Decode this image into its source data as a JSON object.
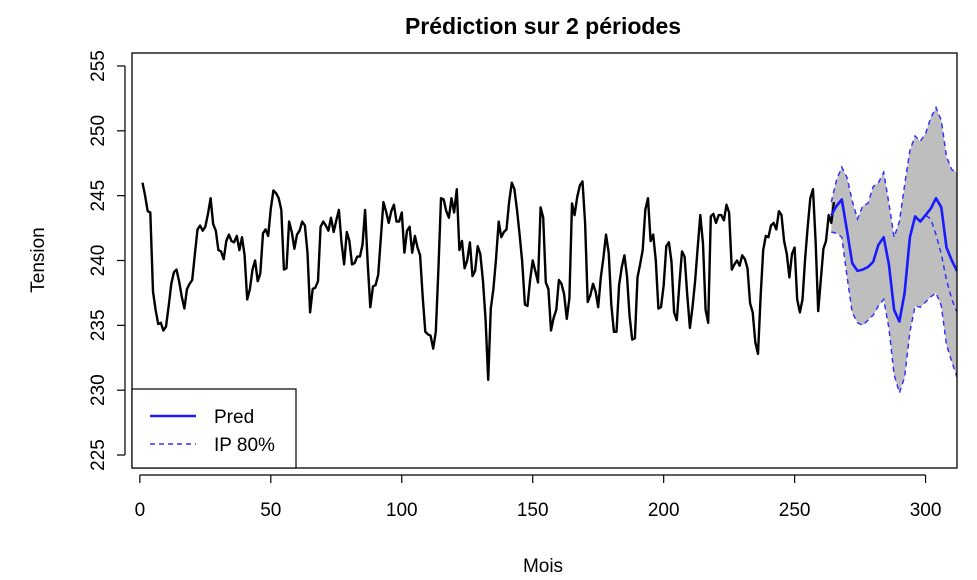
{
  "chart_data": {
    "type": "line",
    "title": "Prédiction sur 2 périodes",
    "xlabel": "Mois",
    "ylabel": "Tension",
    "xlim": [
      -3,
      312
    ],
    "ylim": [
      224,
      256
    ],
    "x_ticks": [
      0,
      50,
      100,
      150,
      200,
      250,
      300
    ],
    "y_ticks": [
      225,
      230,
      235,
      240,
      245,
      250,
      255
    ],
    "grid": false,
    "legend_position": "bottom-left",
    "legend": [
      {
        "label": "Pred",
        "style": "solid",
        "color": "#1a1aff"
      },
      {
        "label": "IP 80%",
        "style": "dashed",
        "color": "#3333ff"
      }
    ],
    "series": [
      {
        "style": "solid",
        "color": "#000000",
        "x_start": 1,
        "values": [
          246.0,
          245.0,
          243.8,
          243.7,
          237.6,
          236.2,
          235.1,
          235.2,
          234.6,
          234.9,
          236.5,
          238.2,
          239.1,
          239.3,
          238.4,
          237.2,
          236.3,
          237.8,
          238.2,
          238.5,
          240.5,
          242.4,
          242.7,
          242.3,
          242.6,
          243.6,
          244.8,
          242.8,
          242.3,
          240.8,
          240.7,
          240.1,
          241.5,
          242.0,
          241.5,
          241.4,
          241.9,
          240.8,
          241.8,
          240.4,
          237.0,
          237.8,
          239.3,
          240.0,
          238.4,
          239.0,
          242.1,
          242.4,
          241.9,
          244.0,
          245.4,
          245.2,
          244.8,
          243.9,
          239.3,
          239.4,
          243.0,
          242.2,
          240.9,
          242.0,
          242.3,
          243.0,
          242.7,
          240.6,
          236.0,
          237.8,
          237.9,
          238.4,
          242.6,
          243.0,
          242.7,
          242.3,
          243.3,
          242.2,
          243.1,
          243.9,
          241.4,
          239.7,
          242.2,
          241.5,
          239.7,
          239.8,
          240.3,
          240.3,
          241.2,
          243.9,
          239.8,
          236.4,
          238.0,
          238.1,
          238.9,
          241.7,
          244.5,
          243.8,
          242.9,
          243.8,
          244.3,
          243.0,
          243.0,
          243.7,
          240.6,
          242.3,
          242.6,
          240.6,
          241.9,
          241.0,
          240.4,
          237.2,
          234.5,
          234.3,
          234.2,
          233.2,
          234.5,
          239.3,
          244.8,
          244.7,
          243.8,
          243.3,
          244.8,
          243.7,
          245.5,
          240.8,
          241.5,
          239.4,
          240.0,
          241.4,
          238.8,
          239.2,
          241.1,
          240.5,
          238.4,
          235.4,
          230.8,
          236.3,
          237.8,
          240.1,
          243.0,
          241.8,
          242.2,
          242.4,
          244.5,
          246.0,
          245.5,
          243.9,
          242.0,
          239.9,
          236.6,
          236.5,
          238.5,
          240.0,
          239.2,
          238.3,
          244.1,
          243.3,
          238.3,
          237.8,
          234.6,
          235.6,
          236.2,
          238.5,
          238.2,
          237.4,
          235.5,
          237.1,
          244.4,
          243.5,
          244.9,
          245.8,
          246.1,
          242.9,
          236.8,
          237.3,
          238.2,
          237.6,
          236.4,
          238.7,
          240.2,
          242.0,
          240.6,
          236.6,
          234.5,
          234.5,
          238.1,
          239.5,
          240.4,
          238.8,
          235.7,
          233.9,
          234.0,
          238.7,
          239.7,
          240.8,
          243.9,
          244.8,
          241.5,
          242.0,
          240.0,
          236.3,
          236.4,
          238.1,
          241.1,
          241.4,
          239.9,
          236.0,
          235.4,
          238.2,
          240.7,
          240.3,
          237.4,
          234.8,
          236.4,
          238.4,
          241.0,
          243.5,
          241.3,
          236.2,
          235.2,
          243.4,
          243.6,
          242.9,
          243.5,
          243.5,
          243.1,
          244.3,
          243.7,
          239.3,
          239.7,
          240.0,
          239.6,
          240.4,
          240.1,
          239.4,
          236.7,
          236.0,
          233.7,
          232.8,
          237.2,
          240.8,
          241.9,
          241.8,
          242.7,
          242.9,
          242.4,
          243.8,
          243.5,
          241.5,
          240.5,
          238.7,
          240.5,
          241.0,
          237.0,
          236.0,
          237.0,
          240.1,
          242.6,
          244.8,
          245.5,
          241.5,
          236.1,
          238.5,
          240.9,
          241.5,
          243.5,
          242.9,
          244.5
        ]
      },
      {
        "name": "Pred",
        "style": "solid",
        "color": "#1a1aff",
        "x": [
          264,
          266,
          268,
          270,
          272,
          274,
          276,
          278,
          280,
          282,
          284,
          286,
          288,
          290,
          292,
          294,
          296,
          298,
          300,
          302,
          304,
          306,
          308,
          310,
          312
        ],
        "values": [
          243.5,
          244.2,
          244.7,
          242.3,
          239.8,
          239.2,
          239.3,
          239.5,
          239.9,
          241.2,
          241.8,
          239.7,
          236.2,
          235.3,
          237.5,
          241.8,
          243.4,
          243.0,
          243.5,
          244.0,
          244.8,
          244.1,
          241.0,
          240.0,
          239.2
        ]
      },
      {
        "name": "IP 80%",
        "style": "dashed",
        "color": "#3333ff",
        "x": [
          264,
          266,
          268,
          270,
          272,
          274,
          276,
          278,
          280,
          282,
          284,
          286,
          288,
          290,
          292,
          294,
          296,
          298,
          300,
          302,
          304,
          306,
          308,
          310,
          312
        ],
        "upper": [
          244.5,
          246.2,
          247.2,
          246.4,
          244.6,
          243.2,
          244.2,
          244.4,
          245.7,
          246.0,
          246.8,
          244.4,
          241.8,
          243.0,
          245.8,
          248.5,
          249.6,
          249.2,
          249.8,
          251.0,
          251.8,
          250.8,
          248.0,
          247.0,
          246.8
        ],
        "lower": [
          242.2,
          242.1,
          241.8,
          238.8,
          236.0,
          235.2,
          235.0,
          235.4,
          235.8,
          236.5,
          237.0,
          234.8,
          231.2,
          229.8,
          231.0,
          234.5,
          236.5,
          236.4,
          236.8,
          237.2,
          237.5,
          236.5,
          233.5,
          232.2,
          231.0
        ]
      },
      {
        "style": "dashed",
        "color": "#3333ff",
        "x": [
          298,
          300,
          302,
          304,
          306,
          308,
          310,
          312
        ],
        "values": [
          243.0,
          243.5,
          243.2,
          242.0,
          240.5,
          238.5,
          237.0,
          236.0
        ]
      }
    ]
  }
}
